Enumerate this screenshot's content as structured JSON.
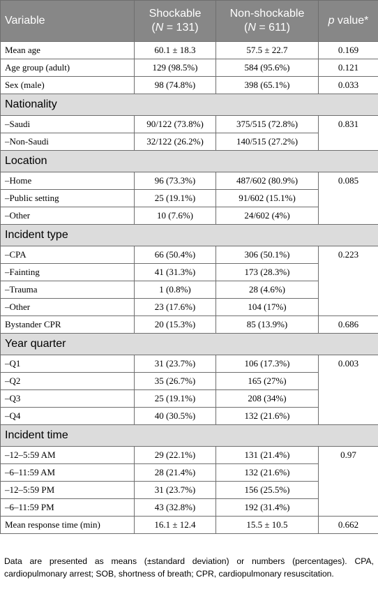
{
  "header": {
    "variable": "Variable",
    "shockable_line1": "Shockable",
    "shockable_line2_pre": "(",
    "shockable_n_symbol": "N",
    "shockable_line2_post": " = 131)",
    "nonshockable_line1": "Non-shockable",
    "nonshockable_line2_pre": "(",
    "nonshockable_n_symbol": "N",
    "nonshockable_line2_post": " = 611)",
    "p_symbol": "p",
    "p_rest": " value*"
  },
  "rows": {
    "mean_age": {
      "label": "Mean age",
      "shockable": "60.1 ± 18.3",
      "nonshockable": "57.5 ± 22.7",
      "p": "0.169"
    },
    "age_group": {
      "label": "Age group (adult)",
      "shockable": "129 (98.5%)",
      "nonshockable": "584 (95.6%)",
      "p": "0.121"
    },
    "sex": {
      "label": "Sex (male)",
      "shockable": "98 (74.8%)",
      "nonshockable": "398 (65.1%)",
      "p": "0.033"
    },
    "nationality": {
      "title": "Nationality",
      "p": "0.831",
      "items": [
        {
          "label": "–Saudi",
          "shockable": "90/122 (73.8%)",
          "nonshockable": "375/515 (72.8%)"
        },
        {
          "label": "–Non-Saudi",
          "shockable": "32/122 (26.2%)",
          "nonshockable": "140/515 (27.2%)"
        }
      ]
    },
    "location": {
      "title": "Location",
      "p": "0.085",
      "items": [
        {
          "label": "–Home",
          "shockable": "96 (73.3%)",
          "nonshockable": "487/602 (80.9%)"
        },
        {
          "label": "–Public setting",
          "shockable": "25 (19.1%)",
          "nonshockable": "91/602 (15.1%)"
        },
        {
          "label": "–Other",
          "shockable": "10 (7.6%)",
          "nonshockable": "24/602 (4%)"
        }
      ]
    },
    "incident_type": {
      "title": "Incident type",
      "p": "0.223",
      "items": [
        {
          "label": "–CPA",
          "shockable": "66 (50.4%)",
          "nonshockable": "306 (50.1%)"
        },
        {
          "label": "–Fainting",
          "shockable": "41 (31.3%)",
          "nonshockable": "173 (28.3%)"
        },
        {
          "label": "–Trauma",
          "shockable": "1 (0.8%)",
          "nonshockable": "28 (4.6%)"
        },
        {
          "label": "–Other",
          "shockable": "23 (17.6%)",
          "nonshockable": "104 (17%)"
        }
      ]
    },
    "bystander_cpr": {
      "label": "Bystander CPR",
      "shockable": "20 (15.3%)",
      "nonshockable": "85 (13.9%)",
      "p": "0.686"
    },
    "year_quarter": {
      "title": "Year quarter",
      "p": "0.003",
      "items": [
        {
          "label": "–Q1",
          "shockable": "31 (23.7%)",
          "nonshockable": "106 (17.3%)"
        },
        {
          "label": "–Q2",
          "shockable": "35 (26.7%)",
          "nonshockable": "165 (27%)"
        },
        {
          "label": "–Q3",
          "shockable": "25 (19.1%)",
          "nonshockable": "208 (34%)"
        },
        {
          "label": "–Q4",
          "shockable": "40 (30.5%)",
          "nonshockable": "132 (21.6%)"
        }
      ]
    },
    "incident_time": {
      "title": "Incident time",
      "p": "0.97",
      "items": [
        {
          "label": "–12–5:59 AM",
          "shockable": "29 (22.1%)",
          "nonshockable": "131 (21.4%)"
        },
        {
          "label": "–6–11:59 AM",
          "shockable": "28 (21.4%)",
          "nonshockable": "132 (21.6%)"
        },
        {
          "label": "–12–5:59 PM",
          "shockable": "31 (23.7%)",
          "nonshockable": "156 (25.5%)"
        },
        {
          "label": "–6–11:59 PM",
          "shockable": "43 (32.8%)",
          "nonshockable": "192 (31.4%)"
        }
      ]
    },
    "response_time": {
      "label": "Mean response time (min)",
      "shockable": "16.1 ± 12.4",
      "nonshockable": "15.5 ± 10.5",
      "p": "0.662"
    }
  },
  "footnote": "Data are presented as means (±standard deviation) or numbers (percentages). CPA, cardiopulmonary arrest; SOB, shortness of breath; CPR, cardiopulmonary resuscitation."
}
